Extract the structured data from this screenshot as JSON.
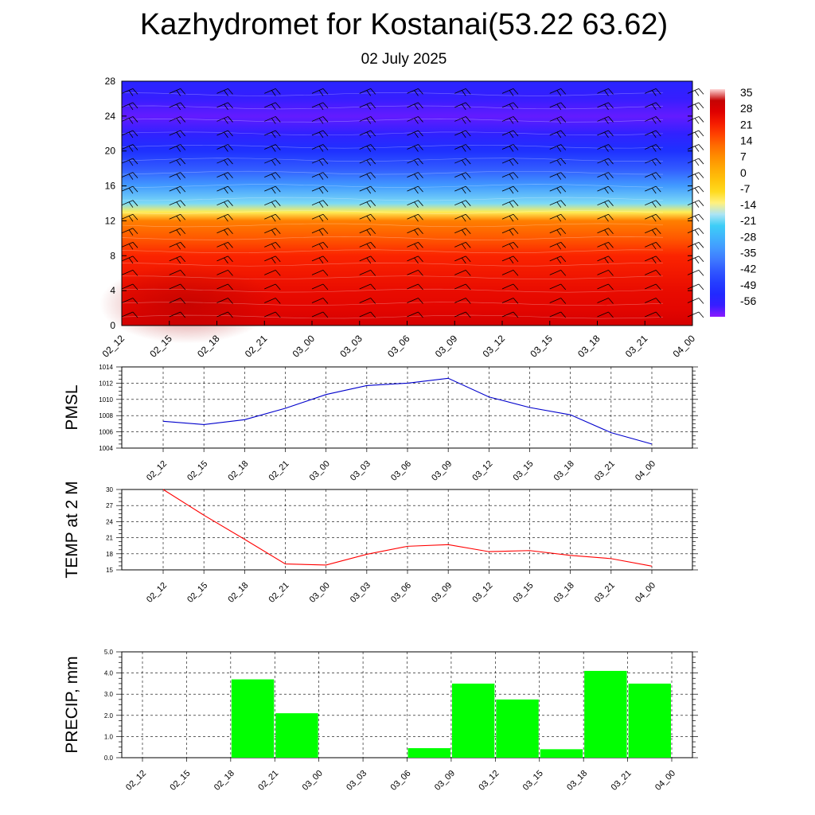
{
  "title": "Kazhydromet for Kostanai(53.22 63.62)",
  "subtitle": "02 July 2025",
  "time_labels": [
    "02_12",
    "02_15",
    "02_18",
    "02_21",
    "03_00",
    "03_03",
    "03_06",
    "03_09",
    "03_12",
    "03_15",
    "03_18",
    "03_21",
    "04_00"
  ],
  "chart_data": [
    {
      "type": "heatmap",
      "name": "temperature-height cross section with wind barbs",
      "x": [
        "02_12",
        "02_15",
        "02_18",
        "02_21",
        "03_00",
        "03_03",
        "03_06",
        "03_09",
        "03_12",
        "03_15",
        "03_18",
        "03_21",
        "04_00"
      ],
      "ylim": [
        0,
        28
      ],
      "yticks": [
        0,
        4,
        8,
        12,
        16,
        20,
        24,
        28
      ],
      "colorbar_labels": [
        "35",
        "28",
        "21",
        "14",
        "7",
        "0",
        "-7",
        "-14",
        "-21",
        "-28",
        "-35",
        "-42",
        "-49",
        "-56"
      ],
      "colorbar_range": [
        -60,
        38
      ],
      "temperature_profile": [
        {
          "y": 0,
          "t": 30
        },
        {
          "y": 2,
          "t": 27
        },
        {
          "y": 4,
          "t": 26
        },
        {
          "y": 6,
          "t": 24
        },
        {
          "y": 8,
          "t": 22
        },
        {
          "y": 10,
          "t": 16
        },
        {
          "y": 12,
          "t": 11
        },
        {
          "y": 13,
          "t": -10
        },
        {
          "y": 14,
          "t": -18
        },
        {
          "y": 16,
          "t": -30
        },
        {
          "y": 18,
          "t": -40
        },
        {
          "y": 20,
          "t": -48
        },
        {
          "y": 22,
          "t": -54
        },
        {
          "y": 24,
          "t": -58
        },
        {
          "y": 26,
          "t": -55
        },
        {
          "y": 28,
          "t": -52
        }
      ]
    },
    {
      "type": "line",
      "ylabel": "PMSL",
      "x": [
        "02_12",
        "02_15",
        "02_18",
        "02_21",
        "03_00",
        "03_03",
        "03_06",
        "03_09",
        "03_12",
        "03_15",
        "03_18",
        "03_21",
        "04_00"
      ],
      "ylim": [
        1004,
        1014
      ],
      "yticks": [
        1004,
        1006,
        1008,
        1010,
        1012,
        1014
      ],
      "grid": true,
      "color": "#0000cc",
      "values": [
        1007.3,
        1006.9,
        1007.5,
        1008.9,
        1010.6,
        1011.7,
        1012.0,
        1012.6,
        1010.3,
        1009.0,
        1008.1,
        1005.9,
        1004.5
      ]
    },
    {
      "type": "line",
      "ylabel": "TEMP at 2 M",
      "x": [
        "02_12",
        "02_15",
        "02_18",
        "02_21",
        "03_00",
        "03_03",
        "03_06",
        "03_09",
        "03_12",
        "03_15",
        "03_18",
        "03_21",
        "04_00"
      ],
      "ylim": [
        15,
        30
      ],
      "yticks": [
        15,
        18,
        21,
        24,
        27,
        30
      ],
      "grid": true,
      "color": "#ff0000",
      "values": [
        30.0,
        25.2,
        20.7,
        16.1,
        15.9,
        17.9,
        19.4,
        19.7,
        18.4,
        18.6,
        17.7,
        17.1,
        15.7
      ]
    },
    {
      "type": "bar",
      "ylabel": "PRECIP, mm",
      "categories": [
        "02_12",
        "02_15",
        "02_18",
        "02_21",
        "03_00",
        "03_03",
        "03_06",
        "03_09",
        "03_12",
        "03_15",
        "03_18",
        "03_21",
        "04_00"
      ],
      "ylim": [
        0,
        5
      ],
      "ytick_labels": [
        "0.0",
        "1.0",
        "2.0",
        "3.0",
        "4.0",
        "5.0"
      ],
      "grid": true,
      "color": "#00ff00",
      "values": [
        0,
        0,
        3.7,
        2.1,
        0,
        0,
        0.45,
        3.5,
        2.75,
        0.4,
        4.1,
        3.5,
        0
      ]
    }
  ]
}
